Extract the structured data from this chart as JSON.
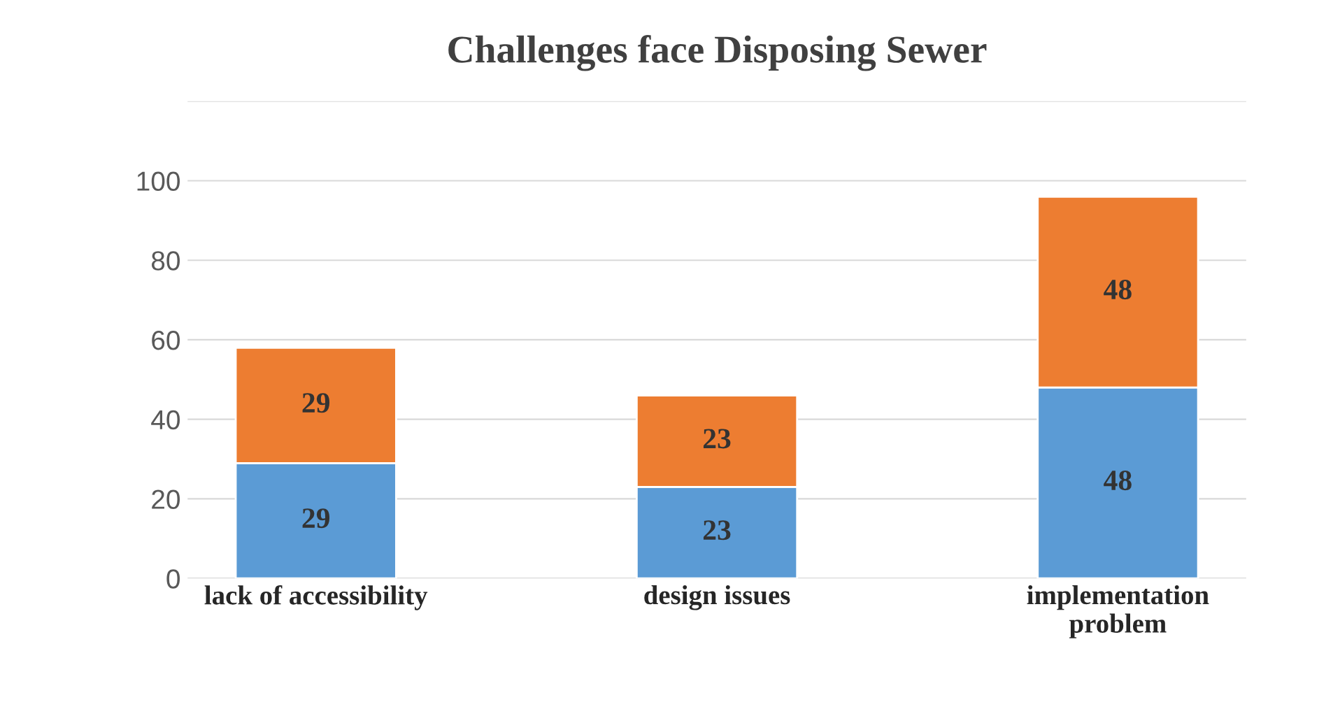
{
  "chart_data": {
    "type": "bar",
    "title": "Challenges face Disposing Sewer",
    "categories": [
      "lack of accessibility",
      "design issues",
      "implementation\nproblem"
    ],
    "stacked": true,
    "data_labels": true,
    "grid": "y",
    "series": [
      {
        "color": "#5b9bd5",
        "values": [
          29,
          23,
          48
        ]
      },
      {
        "color": "#ed7d31",
        "values": [
          29,
          23,
          48
        ]
      }
    ],
    "ylim": [
      0,
      120
    ],
    "yticks": [
      0,
      20,
      40,
      60,
      80,
      100,
      {
        "value": 120,
        "label": null
      }
    ]
  }
}
